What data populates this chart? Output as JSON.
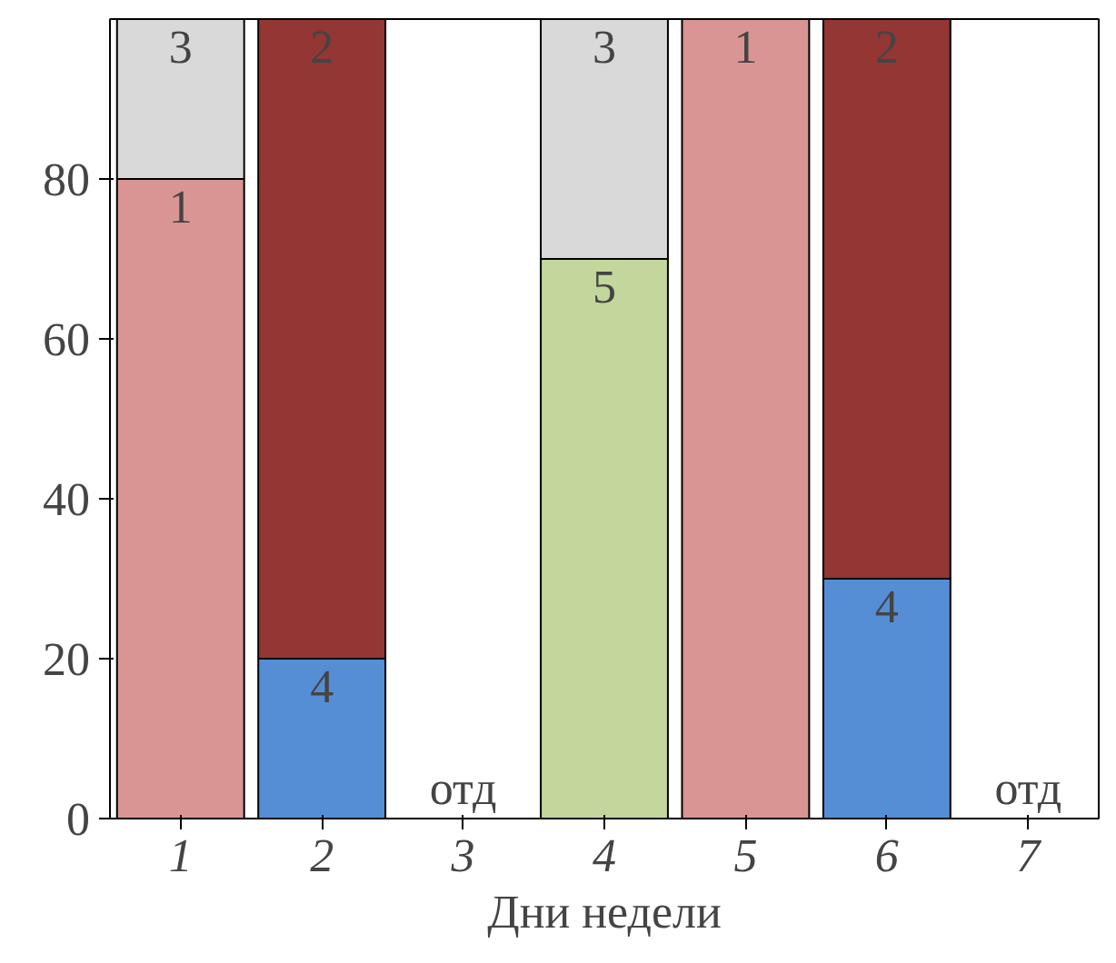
{
  "chart_data": {
    "type": "bar",
    "stacked": true,
    "xlabel": "Дни недели",
    "categories": [
      "1",
      "2",
      "3",
      "4",
      "5",
      "6",
      "7"
    ],
    "series": [
      {
        "name": "4",
        "color": "#558ed5",
        "values": [
          null,
          20,
          null,
          null,
          null,
          30,
          null
        ]
      },
      {
        "name": "5",
        "color": "#c3d69b",
        "values": [
          null,
          null,
          null,
          70,
          null,
          null,
          null
        ]
      },
      {
        "name": "1",
        "color": "#d99594",
        "values": [
          80,
          null,
          null,
          null,
          100,
          null,
          null
        ]
      },
      {
        "name": "2",
        "color": "#943634",
        "values": [
          null,
          80,
          null,
          null,
          null,
          70,
          null
        ]
      },
      {
        "name": "3",
        "color": "#d9d9d9",
        "values": [
          20,
          null,
          null,
          30,
          null,
          null,
          null
        ]
      }
    ],
    "ylim": [
      0,
      100
    ],
    "yticks": [
      0,
      20,
      40,
      60,
      80
    ],
    "grid": false,
    "annotations": [
      "отд",
      "отд"
    ]
  }
}
